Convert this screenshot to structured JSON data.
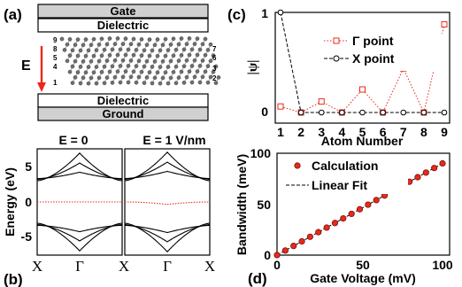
{
  "panel_a": {
    "label": "(a)",
    "gate": "Gate",
    "dielectric_top": "Dielectric",
    "dielectric_bottom": "Dielectric",
    "ground": "Ground",
    "field_label": "E",
    "atom_numbers_left": [
      "9",
      "8",
      "5",
      "4",
      "1"
    ],
    "atom_numbers_right": [
      "7",
      "6",
      "3",
      "2"
    ],
    "field_color": "#e8291c"
  },
  "panel_b": {
    "label": "(b)",
    "title_left": "E = 0",
    "title_right": "E = 1 V/nm",
    "ylabel": "Energy (eV)",
    "y_ticks": [
      "5",
      "0",
      "-5"
    ],
    "x_ticks": [
      "X",
      "Γ",
      "X",
      "Γ",
      "X"
    ],
    "ylim": [
      -7.5,
      7.5
    ],
    "flat_band_color": "#e8291c"
  },
  "panel_c": {
    "label": "(c)",
    "chart_data": {
      "type": "line",
      "xlabel": "Atom Number",
      "ylabel": "|ψ|",
      "x": [
        1,
        2,
        3,
        4,
        5,
        6,
        7,
        8,
        9
      ],
      "xlim": [
        1,
        9
      ],
      "ylim": [
        0,
        1
      ],
      "y_ticks": [
        "1",
        "0"
      ],
      "x_ticks": [
        "1",
        "2",
        "3",
        "4",
        "5",
        "6",
        "7",
        "8",
        "9"
      ],
      "legend_position": "top-right",
      "series": [
        {
          "name": "Γ point",
          "values": [
            0.06,
            0.0,
            0.11,
            0.0,
            0.23,
            0.0,
            0.44,
            0.0,
            0.88
          ],
          "color": "#e8291c",
          "marker": "square",
          "dash": "dotted"
        },
        {
          "name": "X point",
          "values": [
            1.0,
            0.0,
            0.0,
            0.0,
            0.0,
            0.0,
            0.0,
            0.0,
            0.0
          ],
          "color": "#000000",
          "marker": "circle",
          "dash": "dashed"
        }
      ]
    }
  },
  "panel_d": {
    "label": "(d)",
    "chart_data": {
      "type": "scatter",
      "xlabel": "Gate Voltage (mV)",
      "ylabel": "Bandwidth (meV)",
      "xlim": [
        0,
        100
      ],
      "ylim": [
        0,
        100
      ],
      "x_ticks": [
        "0",
        "50",
        "100"
      ],
      "y_ticks": [
        "100",
        "50",
        "0"
      ],
      "legend_position": "top-left",
      "series": [
        {
          "name": "Calculation",
          "x": [
            0,
            5,
            10,
            15,
            20,
            25,
            30,
            35,
            40,
            45,
            50,
            55,
            60,
            65,
            70,
            75,
            80,
            85,
            90,
            95,
            100
          ],
          "values": [
            0,
            4.5,
            9,
            13.5,
            18,
            22.5,
            27,
            31.5,
            36,
            40.5,
            45,
            49.5,
            54,
            58.5,
            63,
            67.5,
            72,
            76.5,
            81,
            85.5,
            90
          ],
          "color": "#e8291c",
          "marker": "circle"
        },
        {
          "name": "Linear Fit",
          "x": [
            0,
            100
          ],
          "values": [
            0,
            90
          ],
          "color": "#000000",
          "dash": "dashed"
        }
      ]
    }
  }
}
